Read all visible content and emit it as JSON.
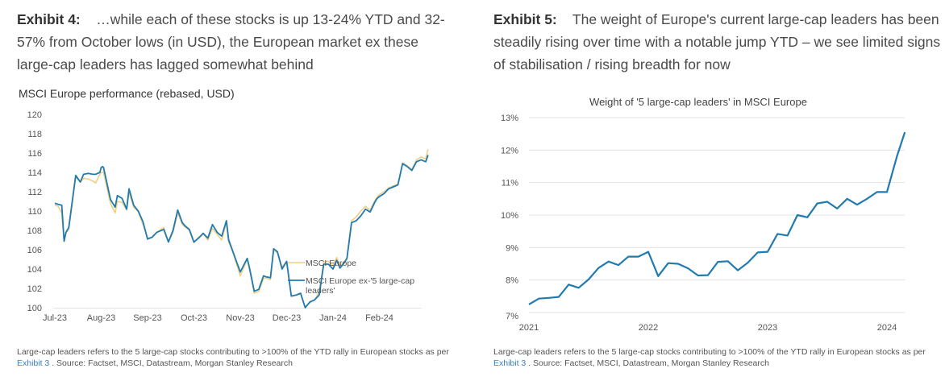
{
  "exhibit4": {
    "label": "Exhibit 4:",
    "title": "…while each of these stocks is up 13-24% YTD and 32-57% from October lows (in USD), the European market ex these large-cap leaders has lagged somewhat behind",
    "footnote_pre": "Large-cap leaders refers to the 5 large-cap stocks contributing to >100% of the YTD rally in European stocks as per ",
    "footnote_link": "Exhibit 3",
    "footnote_post": " . Source: Factset, MSCI, Datastream, Morgan Stanley Research"
  },
  "exhibit5": {
    "label": "Exhibit 5:",
    "title": "The weight of Europe's current large-cap leaders has been steadily rising over time with a notable jump YTD – we see limited signs of stabilisation / rising breadth for now",
    "footnote_pre": "Large-cap leaders refers to the 5 large-cap stocks contributing to >100% of the YTD rally in European stocks as per ",
    "footnote_link": "Exhibit 3",
    "footnote_post": " . Source: Factset, MSCI, Datastream, Morgan Stanley Research"
  },
  "colors": {
    "gold": "#f0cf85",
    "blue": "#1f7bb0",
    "grid": "#e3e3e3",
    "axis_text": "#555555"
  },
  "chart_data": [
    {
      "type": "line",
      "title": "MSCI Europe performance (rebased, USD)",
      "xlabel": "",
      "ylabel": "",
      "ylim": [
        100,
        120
      ],
      "yticks": [
        100,
        102,
        104,
        106,
        108,
        110,
        112,
        114,
        116,
        118,
        120
      ],
      "xticks": [
        "Jul-23",
        "Aug-23",
        "Sep-23",
        "Oct-23",
        "Nov-23",
        "Dec-23",
        "Jan-24",
        "Feb-24"
      ],
      "x_range_months": [
        0,
        8.05
      ],
      "grid": false,
      "legend": "bottom-right",
      "series": [
        {
          "name": "MSCI Europe",
          "color_key": "gold",
          "x": [
            0,
            0.07,
            0.15,
            0.2,
            0.24,
            0.3,
            0.45,
            0.55,
            0.62,
            0.72,
            0.82,
            0.88,
            0.97,
            1.0,
            1.03,
            1.05,
            1.2,
            1.3,
            1.35,
            1.45,
            1.55,
            1.6,
            1.7,
            1.8,
            1.9,
            2.0,
            2.1,
            2.2,
            2.35,
            2.45,
            2.55,
            2.65,
            2.75,
            2.8,
            2.9,
            3.0,
            3.1,
            3.2,
            3.3,
            3.4,
            3.5,
            3.6,
            3.7,
            3.75,
            3.82,
            3.9,
            4.0,
            4.15,
            4.2,
            4.3,
            4.4,
            4.5,
            4.55,
            4.65,
            4.72,
            4.8,
            4.9,
            5.0,
            5.1,
            5.2,
            5.3,
            5.4,
            5.5,
            5.6,
            5.7,
            5.8,
            5.9,
            6.0,
            6.08,
            6.15,
            6.25,
            6.3,
            6.4,
            6.5,
            6.6,
            6.7,
            6.8,
            6.9,
            6.95,
            7.0,
            7.1,
            7.2,
            7.3,
            7.4,
            7.5,
            7.6,
            7.7,
            7.8,
            7.9,
            8.0,
            8.05
          ],
          "values": [
            110.6,
            110.5,
            109.8,
            106.8,
            107.7,
            108.1,
            113.5,
            113.0,
            113.4,
            113.3,
            113.1,
            112.9,
            113.8,
            114.0,
            114.0,
            114.0,
            110.8,
            109.8,
            111.0,
            110.9,
            110.1,
            111.9,
            110.4,
            109.9,
            108.6,
            107.2,
            107.3,
            107.8,
            108.3,
            106.8,
            107.8,
            109.8,
            108.6,
            108.4,
            108.0,
            106.7,
            107.3,
            107.6,
            107.0,
            108.2,
            107.6,
            107.0,
            108.8,
            106.8,
            106.0,
            104.8,
            103.3,
            105.0,
            103.9,
            101.5,
            101.7,
            103.0,
            103.1,
            102.9,
            105.9,
            105.7,
            104.2,
            104.8,
            101.2,
            101.3,
            101.4,
            100.1,
            100.5,
            100.8,
            101.6,
            104.7,
            104.8,
            104.3,
            105.2,
            104.3,
            104.8,
            105.2,
            109.0,
            109.4,
            110.0,
            110.5,
            110.1,
            111.1,
            111.4,
            111.7,
            112.0,
            112.4,
            112.6,
            112.8,
            115.0,
            114.7,
            114.3,
            115.3,
            115.6,
            115.4,
            116.4
          ]
        },
        {
          "name": "MSCI Europe ex-'5 large-cap leaders'",
          "color_key": "blue",
          "x": [
            0,
            0.07,
            0.15,
            0.2,
            0.24,
            0.3,
            0.45,
            0.55,
            0.62,
            0.72,
            0.82,
            0.88,
            0.97,
            1.0,
            1.03,
            1.05,
            1.2,
            1.3,
            1.35,
            1.45,
            1.55,
            1.6,
            1.7,
            1.8,
            1.9,
            2.0,
            2.1,
            2.2,
            2.35,
            2.45,
            2.55,
            2.65,
            2.75,
            2.8,
            2.9,
            3.0,
            3.1,
            3.2,
            3.3,
            3.4,
            3.5,
            3.6,
            3.7,
            3.75,
            3.82,
            3.9,
            4.0,
            4.15,
            4.2,
            4.3,
            4.4,
            4.5,
            4.55,
            4.65,
            4.72,
            4.8,
            4.9,
            5.0,
            5.1,
            5.2,
            5.3,
            5.4,
            5.5,
            5.6,
            5.7,
            5.8,
            5.9,
            6.0,
            6.08,
            6.15,
            6.25,
            6.3,
            6.4,
            6.5,
            6.6,
            6.7,
            6.8,
            6.9,
            6.95,
            7.0,
            7.1,
            7.2,
            7.3,
            7.4,
            7.5,
            7.6,
            7.7,
            7.8,
            7.9,
            8.0,
            8.05
          ],
          "values": [
            110.8,
            110.7,
            110.6,
            106.9,
            107.8,
            108.3,
            113.7,
            113.0,
            113.8,
            113.9,
            113.8,
            113.8,
            114.0,
            114.5,
            114.6,
            114.5,
            111.2,
            110.4,
            111.6,
            111.3,
            110.2,
            112.3,
            110.6,
            110.0,
            108.9,
            107.1,
            107.3,
            107.8,
            108.1,
            106.8,
            108.0,
            110.1,
            108.8,
            108.5,
            108.1,
            106.8,
            107.2,
            107.7,
            107.2,
            108.6,
            107.8,
            107.4,
            109.0,
            107.0,
            106.1,
            105.0,
            103.7,
            105.1,
            104.1,
            101.7,
            101.9,
            103.3,
            103.2,
            103.1,
            106.1,
            105.8,
            104.0,
            104.8,
            101.2,
            101.3,
            101.5,
            100.0,
            100.6,
            100.8,
            101.3,
            104.5,
            104.5,
            104.0,
            104.9,
            104.1,
            104.7,
            105.1,
            108.8,
            109.0,
            109.5,
            110.2,
            109.9,
            110.9,
            111.3,
            111.5,
            111.8,
            112.3,
            112.5,
            112.7,
            114.9,
            114.6,
            114.2,
            115.1,
            115.3,
            115.1,
            115.8
          ]
        }
      ]
    },
    {
      "type": "line",
      "title": "Weight of '5 large-cap leaders' in MSCI Europe",
      "xlabel": "",
      "ylabel": "",
      "ylim": [
        7,
        13
      ],
      "yticks": [
        "7%",
        "8%",
        "9%",
        "10%",
        "11%",
        "12%",
        "13%"
      ],
      "xticks": [
        "2021",
        "2022",
        "2023",
        "2024"
      ],
      "x_range_years": [
        2021,
        2024.15
      ],
      "grid": true,
      "legend": "none",
      "series": [
        {
          "name": "Weight of '5 large-cap leaders' in MSCI Europe",
          "color_key": "blue",
          "x": [
            2021.0,
            2021.083,
            2021.167,
            2021.25,
            2021.333,
            2021.417,
            2021.5,
            2021.583,
            2021.667,
            2021.75,
            2021.833,
            2021.917,
            2022.0,
            2022.083,
            2022.167,
            2022.25,
            2022.333,
            2022.417,
            2022.5,
            2022.583,
            2022.667,
            2022.75,
            2022.833,
            2022.917,
            2023.0,
            2023.083,
            2023.167,
            2023.25,
            2023.333,
            2023.417,
            2023.5,
            2023.583,
            2023.667,
            2023.75,
            2023.833,
            2023.917,
            2024.0,
            2024.083,
            2024.15
          ],
          "values": [
            7.25,
            7.43,
            7.45,
            7.48,
            7.86,
            7.76,
            8.02,
            8.37,
            8.57,
            8.46,
            8.72,
            8.72,
            8.87,
            8.12,
            8.52,
            8.5,
            8.36,
            8.14,
            8.15,
            8.56,
            8.58,
            8.3,
            8.53,
            8.85,
            8.87,
            9.42,
            9.37,
            10.0,
            9.93,
            10.36,
            10.41,
            10.2,
            10.5,
            10.32,
            10.5,
            10.71,
            10.71,
            11.8,
            12.55
          ]
        }
      ]
    }
  ]
}
